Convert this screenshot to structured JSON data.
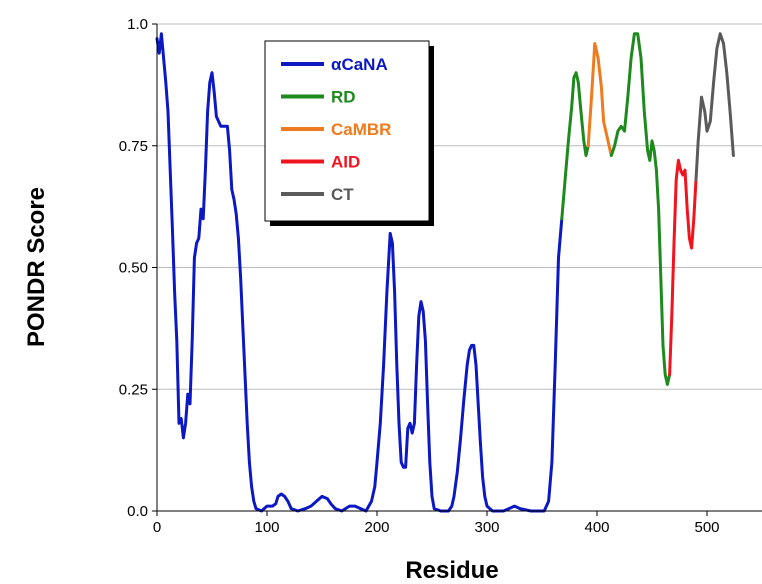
{
  "chart_data": {
    "type": "line",
    "title": "",
    "xlabel": "Residue",
    "ylabel": "PONDR Score",
    "xlim": [
      0,
      550
    ],
    "ylim": [
      0,
      1
    ],
    "x_ticks": [
      {
        "value": 0,
        "label": "0"
      },
      {
        "value": 100,
        "label": "100"
      },
      {
        "value": 200,
        "label": "200"
      },
      {
        "value": 300,
        "label": "300"
      },
      {
        "value": 400,
        "label": "400"
      },
      {
        "value": 500,
        "label": "500"
      }
    ],
    "y_ticks": [
      {
        "value": 0,
        "label": "0.0"
      },
      {
        "value": 0.25,
        "label": "0.25"
      },
      {
        "value": 0.5,
        "label": "0.50"
      },
      {
        "value": 0.75,
        "label": "0.75"
      },
      {
        "value": 1.0,
        "label": "1.0"
      }
    ],
    "grid": "horizontal",
    "legend_position": "top-left",
    "series": [
      {
        "name": "αCaNA",
        "color": "#0b18c4",
        "points": [
          [
            0,
            0.97
          ],
          [
            2,
            0.94
          ],
          [
            4,
            0.98
          ],
          [
            6,
            0.93
          ],
          [
            8,
            0.88
          ],
          [
            10,
            0.82
          ],
          [
            12,
            0.7
          ],
          [
            14,
            0.58
          ],
          [
            16,
            0.45
          ],
          [
            18,
            0.35
          ],
          [
            20,
            0.18
          ],
          [
            22,
            0.19
          ],
          [
            24,
            0.15
          ],
          [
            26,
            0.18
          ],
          [
            28,
            0.24
          ],
          [
            30,
            0.22
          ],
          [
            32,
            0.35
          ],
          [
            34,
            0.52
          ],
          [
            36,
            0.55
          ],
          [
            38,
            0.56
          ],
          [
            40,
            0.62
          ],
          [
            42,
            0.6
          ],
          [
            44,
            0.7
          ],
          [
            46,
            0.82
          ],
          [
            48,
            0.88
          ],
          [
            50,
            0.9
          ],
          [
            52,
            0.86
          ],
          [
            54,
            0.81
          ],
          [
            56,
            0.8
          ],
          [
            58,
            0.79
          ],
          [
            60,
            0.79
          ],
          [
            62,
            0.79
          ],
          [
            64,
            0.79
          ],
          [
            66,
            0.74
          ],
          [
            68,
            0.66
          ],
          [
            70,
            0.64
          ],
          [
            72,
            0.61
          ],
          [
            74,
            0.56
          ],
          [
            76,
            0.48
          ],
          [
            78,
            0.38
          ],
          [
            80,
            0.28
          ],
          [
            82,
            0.18
          ],
          [
            84,
            0.1
          ],
          [
            86,
            0.05
          ],
          [
            88,
            0.02
          ],
          [
            90,
            0.005
          ],
          [
            95,
            0.0
          ],
          [
            100,
            0.01
          ],
          [
            105,
            0.01
          ],
          [
            108,
            0.015
          ],
          [
            110,
            0.03
          ],
          [
            113,
            0.035
          ],
          [
            116,
            0.03
          ],
          [
            119,
            0.02
          ],
          [
            122,
            0.005
          ],
          [
            128,
            0.0
          ],
          [
            135,
            0.005
          ],
          [
            140,
            0.01
          ],
          [
            145,
            0.02
          ],
          [
            150,
            0.03
          ],
          [
            155,
            0.025
          ],
          [
            158,
            0.015
          ],
          [
            162,
            0.005
          ],
          [
            168,
            0.0
          ],
          [
            175,
            0.01
          ],
          [
            180,
            0.01
          ],
          [
            185,
            0.005
          ],
          [
            190,
            0.0
          ],
          [
            195,
            0.02
          ],
          [
            198,
            0.05
          ],
          [
            200,
            0.1
          ],
          [
            203,
            0.18
          ],
          [
            206,
            0.3
          ],
          [
            209,
            0.45
          ],
          [
            212,
            0.57
          ],
          [
            214,
            0.55
          ],
          [
            216,
            0.45
          ],
          [
            218,
            0.3
          ],
          [
            220,
            0.18
          ],
          [
            222,
            0.1
          ],
          [
            224,
            0.09
          ],
          [
            226,
            0.09
          ],
          [
            228,
            0.17
          ],
          [
            230,
            0.18
          ],
          [
            232,
            0.16
          ],
          [
            234,
            0.18
          ],
          [
            236,
            0.3
          ],
          [
            238,
            0.4
          ],
          [
            240,
            0.43
          ],
          [
            242,
            0.41
          ],
          [
            244,
            0.35
          ],
          [
            246,
            0.22
          ],
          [
            248,
            0.1
          ],
          [
            250,
            0.03
          ],
          [
            252,
            0.005
          ],
          [
            258,
            0.0
          ],
          [
            265,
            0.0
          ],
          [
            268,
            0.01
          ],
          [
            270,
            0.03
          ],
          [
            273,
            0.08
          ],
          [
            276,
            0.15
          ],
          [
            279,
            0.23
          ],
          [
            282,
            0.3
          ],
          [
            284,
            0.33
          ],
          [
            286,
            0.34
          ],
          [
            288,
            0.34
          ],
          [
            290,
            0.3
          ],
          [
            292,
            0.22
          ],
          [
            294,
            0.14
          ],
          [
            296,
            0.07
          ],
          [
            298,
            0.03
          ],
          [
            300,
            0.01
          ],
          [
            305,
            0.0
          ],
          [
            315,
            0.0
          ],
          [
            320,
            0.005
          ],
          [
            325,
            0.01
          ],
          [
            330,
            0.005
          ],
          [
            340,
            0.0
          ],
          [
            352,
            0.0
          ],
          [
            356,
            0.02
          ],
          [
            359,
            0.1
          ],
          [
            362,
            0.3
          ],
          [
            365,
            0.52
          ],
          [
            368,
            0.6
          ]
        ]
      },
      {
        "name": "RD",
        "color": "#1e8a1e",
        "points": [
          [
            368,
            0.6
          ],
          [
            371,
            0.68
          ],
          [
            374,
            0.76
          ],
          [
            377,
            0.83
          ],
          [
            379,
            0.89
          ],
          [
            381,
            0.9
          ],
          [
            383,
            0.88
          ],
          [
            385,
            0.83
          ],
          [
            388,
            0.76
          ],
          [
            390,
            0.73
          ],
          [
            392,
            0.75
          ]
        ]
      },
      {
        "name": "CaMBR",
        "color": "#f07a1e",
        "points": [
          [
            392,
            0.75
          ],
          [
            395,
            0.85
          ],
          [
            398,
            0.96
          ],
          [
            401,
            0.93
          ],
          [
            404,
            0.87
          ],
          [
            406,
            0.8
          ],
          [
            408,
            0.78
          ],
          [
            410,
            0.76
          ],
          [
            413,
            0.73
          ]
        ]
      },
      {
        "name": "RD",
        "color": "#1e8a1e",
        "points": [
          [
            413,
            0.73
          ],
          [
            416,
            0.75
          ],
          [
            419,
            0.78
          ],
          [
            422,
            0.79
          ],
          [
            425,
            0.78
          ],
          [
            428,
            0.85
          ],
          [
            431,
            0.93
          ],
          [
            434,
            0.98
          ],
          [
            437,
            0.98
          ],
          [
            440,
            0.93
          ],
          [
            443,
            0.82
          ],
          [
            446,
            0.74
          ],
          [
            448,
            0.72
          ],
          [
            450,
            0.76
          ],
          [
            452,
            0.74
          ],
          [
            454,
            0.7
          ],
          [
            456,
            0.62
          ],
          [
            458,
            0.48
          ],
          [
            460,
            0.34
          ],
          [
            462,
            0.28
          ],
          [
            464,
            0.26
          ],
          [
            466,
            0.28
          ]
        ]
      },
      {
        "name": "AID",
        "color": "#f0141e",
        "points": [
          [
            466,
            0.28
          ],
          [
            468,
            0.4
          ],
          [
            470,
            0.55
          ],
          [
            472,
            0.68
          ],
          [
            474,
            0.72
          ],
          [
            476,
            0.7
          ],
          [
            478,
            0.69
          ],
          [
            480,
            0.7
          ],
          [
            482,
            0.62
          ],
          [
            484,
            0.56
          ],
          [
            486,
            0.54
          ],
          [
            488,
            0.6
          ],
          [
            490,
            0.68
          ]
        ]
      },
      {
        "name": "CT",
        "color": "#5a5a5a",
        "points": [
          [
            490,
            0.68
          ],
          [
            492,
            0.76
          ],
          [
            495,
            0.85
          ],
          [
            498,
            0.82
          ],
          [
            500,
            0.78
          ],
          [
            503,
            0.8
          ],
          [
            506,
            0.88
          ],
          [
            509,
            0.95
          ],
          [
            512,
            0.98
          ],
          [
            515,
            0.96
          ],
          [
            518,
            0.9
          ],
          [
            521,
            0.82
          ],
          [
            524,
            0.73
          ]
        ]
      }
    ],
    "legend": [
      {
        "label": "αCaNA",
        "color": "#0b18c4"
      },
      {
        "label": "RD",
        "color": "#1e8a1e"
      },
      {
        "label": "CaMBR",
        "color": "#f07a1e"
      },
      {
        "label": "AID",
        "color": "#f0141e"
      },
      {
        "label": "CT",
        "color": "#5a5a5a"
      }
    ]
  }
}
